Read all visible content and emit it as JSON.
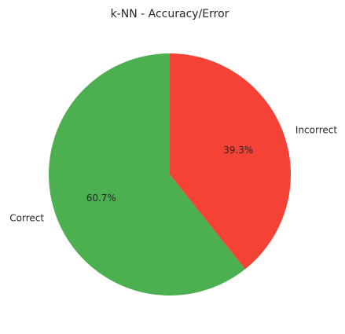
{
  "chart_data": {
    "type": "pie",
    "title": "k-NN - Accuracy/Error",
    "categories": [
      "Correct",
      "Incorrect"
    ],
    "values": [
      60.7,
      39.3
    ],
    "value_labels": [
      "60.7%",
      "39.3%"
    ],
    "colors": [
      "#4caf50",
      "#f44336"
    ],
    "start_angle_deg": 90,
    "direction": "counterclockwise"
  }
}
